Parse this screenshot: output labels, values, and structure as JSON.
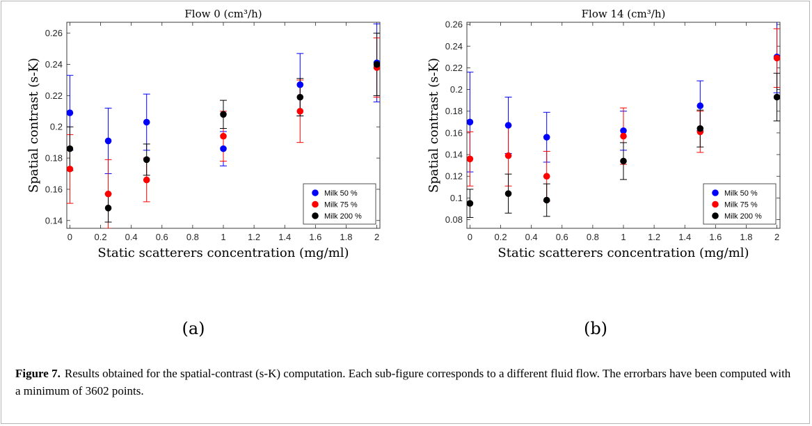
{
  "figure": {
    "caption_label": "Figure 7.",
    "caption_text": "Results obtained for the spatial-contrast (s-K) computation. Each sub-figure corresponds to a different fluid flow. The errorbars have been computed with a minimum of 3602 points.",
    "panel_labels": [
      "(a)",
      "(b)"
    ]
  },
  "chart_data": [
    {
      "type": "scatter",
      "title": "Flow 0 (cm³/h)",
      "xlabel": "Static scatterers concentration (mg/ml)",
      "ylabel": "Spatial contrast (s-K)",
      "xlim": [
        -0.02,
        2.02
      ],
      "ylim": [
        0.135,
        0.267
      ],
      "x_ticks": [
        0,
        0.2,
        0.4,
        0.6,
        0.8,
        1,
        1.2,
        1.4,
        1.6,
        1.8,
        2
      ],
      "x_tick_labels": [
        "0",
        "0.2",
        "0.4",
        "0.6",
        "0.8",
        "1",
        "1.2",
        "1.4",
        "1.6",
        "1.8",
        "2"
      ],
      "y_ticks": [
        0.14,
        0.16,
        0.18,
        0.2,
        0.22,
        0.24,
        0.26
      ],
      "y_tick_labels": [
        "0.14",
        "0.16",
        "0.18",
        "0.2",
        "0.22",
        "0.24",
        "0.26"
      ],
      "grid": false,
      "legend_position": "bottom-right",
      "x": [
        0,
        0.25,
        0.5,
        1,
        1.5,
        2
      ],
      "series": [
        {
          "name": "Milk 50 %",
          "color": "#0000ff",
          "y": [
            0.209,
            0.191,
            0.203,
            0.186,
            0.227,
            0.241
          ],
          "err": [
            0.024,
            0.021,
            0.018,
            0.011,
            0.02,
            0.025
          ]
        },
        {
          "name": "Milk 75 %",
          "color": "#ff0000",
          "y": [
            0.173,
            0.157,
            0.166,
            0.194,
            0.21,
            0.238
          ],
          "err": [
            0.022,
            0.022,
            0.014,
            0.016,
            0.02,
            0.019
          ]
        },
        {
          "name": "Milk 200 %",
          "color": "#000000",
          "y": [
            0.186,
            0.148,
            0.179,
            0.208,
            0.219,
            0.24
          ],
          "err": [
            0.014,
            0.009,
            0.01,
            0.009,
            0.012,
            0.02
          ]
        }
      ]
    },
    {
      "type": "scatter",
      "title": "Flow 14 (cm³/h)",
      "xlabel": "Static scatterers concentration (mg/ml)",
      "ylabel": "Spatial contrast (s-K)",
      "xlim": [
        -0.02,
        2.02
      ],
      "ylim": [
        0.072,
        0.262
      ],
      "x_ticks": [
        0,
        0.2,
        0.4,
        0.6,
        0.8,
        1,
        1.2,
        1.4,
        1.6,
        1.8,
        2
      ],
      "x_tick_labels": [
        "0",
        "0.2",
        "0.4",
        "0.6",
        "0.8",
        "1",
        "1.2",
        "1.4",
        "1.6",
        "1.8",
        "2"
      ],
      "y_ticks": [
        0.08,
        0.1,
        0.12,
        0.14,
        0.16,
        0.18,
        0.2,
        0.22,
        0.24,
        0.26
      ],
      "y_tick_labels": [
        "0.08",
        "0.1",
        "0.12",
        "0.14",
        "0.16",
        "0.18",
        "0.2",
        "0.22",
        "0.24",
        "0.26"
      ],
      "grid": false,
      "legend_position": "bottom-right",
      "x": [
        0,
        0.25,
        0.5,
        1,
        1.5,
        2
      ],
      "series": [
        {
          "name": "Milk 50 %",
          "color": "#0000ff",
          "y": [
            0.17,
            0.167,
            0.156,
            0.162,
            0.185,
            0.23
          ],
          "err": [
            0.046,
            0.026,
            0.023,
            0.018,
            0.023,
            0.033
          ]
        },
        {
          "name": "Milk 75 %",
          "color": "#ff0000",
          "y": [
            0.136,
            0.139,
            0.12,
            0.157,
            0.161,
            0.229
          ],
          "err": [
            0.025,
            0.028,
            0.023,
            0.026,
            0.019,
            0.027
          ]
        },
        {
          "name": "Milk 200 %",
          "color": "#000000",
          "y": [
            0.095,
            0.104,
            0.098,
            0.134,
            0.164,
            0.193
          ],
          "err": [
            0.013,
            0.018,
            0.015,
            0.017,
            0.017,
            0.022
          ]
        }
      ]
    }
  ]
}
